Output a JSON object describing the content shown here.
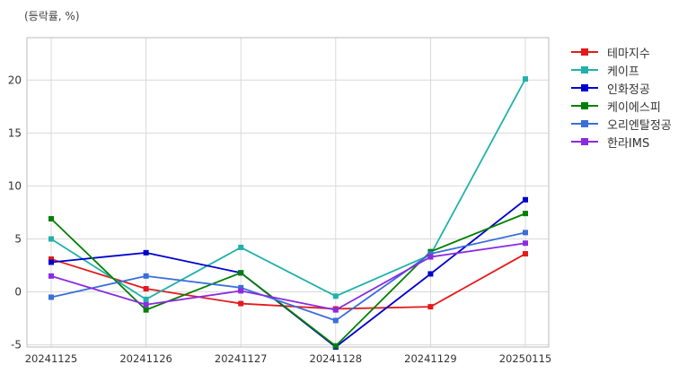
{
  "chart_data": {
    "type": "line",
    "unit_label": "(등락률, %)",
    "categories": [
      "20241125",
      "20241126",
      "20241127",
      "20241128",
      "20241129",
      "20250115"
    ],
    "ylim": [
      -5.2,
      24
    ],
    "yticks": [
      -5,
      0,
      5,
      10,
      15,
      20
    ],
    "grid": true,
    "legend_position": "right",
    "series": [
      {
        "name": "테마지수",
        "color": "#e31a1c",
        "values": [
          3.1,
          0.3,
          -1.1,
          -1.6,
          -1.4,
          3.6
        ]
      },
      {
        "name": "케이프",
        "color": "#20b2aa",
        "values": [
          5.0,
          -0.7,
          4.2,
          -0.4,
          3.5,
          20.1
        ]
      },
      {
        "name": "인화정공",
        "color": "#0000cd",
        "values": [
          2.8,
          3.7,
          1.8,
          -5.2,
          1.7,
          8.7
        ]
      },
      {
        "name": "케이에스피",
        "color": "#008000",
        "values": [
          6.9,
          -1.7,
          1.8,
          -5.1,
          3.8,
          7.4
        ]
      },
      {
        "name": "오리엔탈정공",
        "color": "#3a6fd8",
        "values": [
          -0.5,
          1.5,
          0.4,
          -2.7,
          3.6,
          5.6
        ]
      },
      {
        "name": "한라IMS",
        "color": "#8a2be2",
        "values": [
          1.5,
          -1.2,
          0.1,
          -1.7,
          3.3,
          4.6
        ]
      }
    ]
  }
}
